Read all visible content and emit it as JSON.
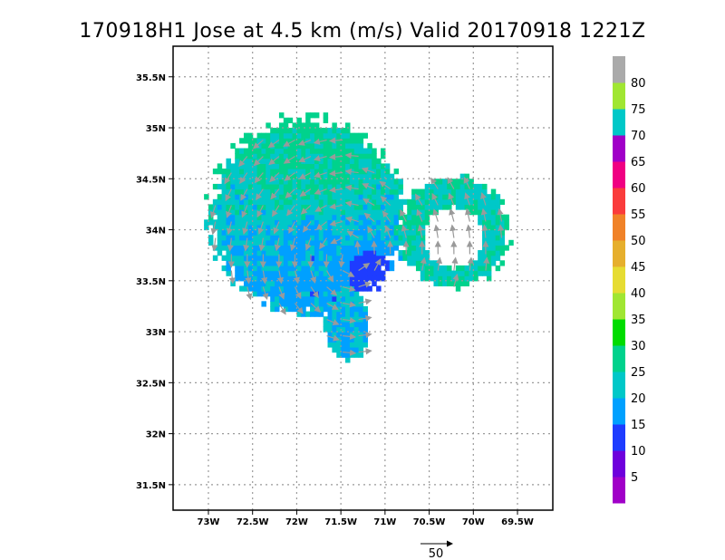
{
  "chart_data": {
    "type": "heatmap",
    "title": "170918H1 Jose at 4.5 km (m/s) Valid 20170918 1221Z",
    "x_ticks": [
      "73W",
      "72.5W",
      "72W",
      "71.5W",
      "71W",
      "70.5W",
      "70W",
      "69.5W"
    ],
    "x_tick_values": [
      -73,
      -72.5,
      -72,
      -71.5,
      -71,
      -70.5,
      -70,
      -69.5
    ],
    "y_ticks": [
      "35.5N",
      "35N",
      "34.5N",
      "34N",
      "33.5N",
      "33N",
      "32.5N",
      "32N",
      "31.5N"
    ],
    "y_tick_values": [
      35.5,
      35,
      34.5,
      34,
      33.5,
      33,
      32.5,
      32,
      31.5
    ],
    "xlim": [
      -73.4,
      -69.1
    ],
    "ylim": [
      31.25,
      35.8
    ],
    "grid": true,
    "colorbar": {
      "position": "right",
      "labels": [
        "5",
        "10",
        "15",
        "20",
        "25",
        "30",
        "35",
        "40",
        "45",
        "50",
        "55",
        "60",
        "65",
        "70",
        "75",
        "80"
      ],
      "bins": [
        {
          "min": 0,
          "max": 5,
          "color": "#a000c8"
        },
        {
          "min": 5,
          "max": 10,
          "color": "#6e00dc"
        },
        {
          "min": 10,
          "max": 15,
          "color": "#1e3cff"
        },
        {
          "min": 15,
          "max": 20,
          "color": "#00a0ff"
        },
        {
          "min": 20,
          "max": 25,
          "color": "#00c8c8"
        },
        {
          "min": 25,
          "max": 30,
          "color": "#00d28c"
        },
        {
          "min": 30,
          "max": 35,
          "color": "#00dc00"
        },
        {
          "min": 35,
          "max": 40,
          "color": "#a0e632"
        },
        {
          "min": 40,
          "max": 45,
          "color": "#e6dc32"
        },
        {
          "min": 45,
          "max": 50,
          "color": "#e6af2d"
        },
        {
          "min": 50,
          "max": 55,
          "color": "#f08228"
        },
        {
          "min": 55,
          "max": 60,
          "color": "#fa3c3c"
        },
        {
          "min": 60,
          "max": 65,
          "color": "#f00082"
        },
        {
          "min": 65,
          "max": 70,
          "color": "#a000c8"
        },
        {
          "min": 70,
          "max": 75,
          "color": "#00c8c8"
        },
        {
          "min": 75,
          "max": 80,
          "color": "#a0e632"
        },
        {
          "min": 80,
          "max": 85,
          "color": "#aaaaaa"
        }
      ]
    },
    "wind_regions": [
      {
        "name": "main",
        "cx": -71.9,
        "cy": 34.1,
        "rx": 1.1,
        "ry": 0.95,
        "base": 22
      },
      {
        "name": "south-tail",
        "cx": -71.45,
        "cy": 33.05,
        "rx": 0.25,
        "ry": 0.35,
        "base": 20
      },
      {
        "name": "east-ring",
        "cx": -70.25,
        "cy": 33.95,
        "rx": 0.62,
        "ry": 0.55,
        "base": 24
      }
    ],
    "low_wind_core": {
      "lon": -71.2,
      "lat": 33.55,
      "value": 10
    },
    "vector_reference": {
      "label": "50",
      "value": 50,
      "unit": "m/s"
    }
  }
}
